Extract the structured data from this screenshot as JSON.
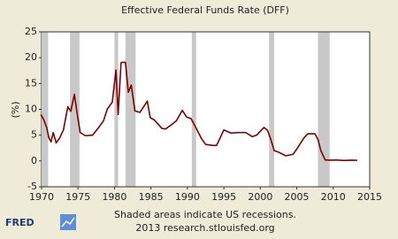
{
  "chart_data": {
    "type": "line",
    "title": "Effective Federal Funds Rate (DFF)",
    "y_label": "(%)",
    "notes": [
      "Shaded areas indicate US recessions.",
      "2013 research.stlouisfed.org"
    ],
    "logo": "FRED",
    "x": [
      1969.9,
      1970.3,
      1970.7,
      1971.0,
      1971.3,
      1971.6,
      1972.0,
      1972.5,
      1973.0,
      1973.6,
      1974.0,
      1974.5,
      1974.9,
      1975.3,
      1976.0,
      1977.0,
      1977.9,
      1978.5,
      1979.0,
      1979.7,
      1980.2,
      1980.5,
      1980.9,
      1981.0,
      1981.5,
      1981.9,
      1982.3,
      1982.8,
      1983.5,
      1984.5,
      1984.9,
      1985.5,
      1986.5,
      1987.0,
      1987.8,
      1988.5,
      1989.3,
      1989.9,
      1990.5,
      1991.0,
      1991.9,
      1992.5,
      1993.5,
      1994.0,
      1995.0,
      1996.0,
      1997.0,
      1998.0,
      1998.9,
      1999.5,
      2000.5,
      2001.0,
      2001.5,
      2001.9,
      2002.5,
      2003.5,
      2004.5,
      2005.0,
      2006.0,
      2006.5,
      2007.5,
      2007.9,
      2008.3,
      2008.9,
      2009.5,
      2010.5,
      2011.5,
      2012.5,
      2013.3
    ],
    "series": [
      {
        "name": "DFF",
        "color": "#800000",
        "values": [
          9.0,
          8.0,
          6.5,
          4.5,
          3.7,
          5.5,
          3.5,
          4.5,
          6.0,
          10.5,
          9.6,
          12.9,
          9.0,
          5.5,
          4.9,
          5.0,
          6.6,
          7.8,
          10.0,
          11.4,
          17.6,
          9.0,
          19.0,
          19.1,
          19.1,
          13.3,
          14.7,
          9.7,
          9.4,
          11.6,
          8.4,
          7.9,
          6.3,
          6.2,
          7.0,
          7.8,
          9.8,
          8.5,
          8.2,
          6.9,
          4.4,
          3.2,
          3.0,
          3.0,
          6.0,
          5.4,
          5.5,
          5.5,
          4.7,
          5.0,
          6.5,
          5.9,
          3.9,
          2.0,
          1.7,
          1.0,
          1.3,
          2.3,
          4.5,
          5.25,
          5.25,
          4.2,
          2.0,
          0.2,
          0.15,
          0.18,
          0.09,
          0.15,
          0.12
        ]
      }
    ],
    "recessions": [
      [
        1969.9,
        1970.9
      ],
      [
        1973.9,
        1975.2
      ],
      [
        1980.0,
        1980.5
      ],
      [
        1981.5,
        1982.9
      ],
      [
        1990.6,
        1991.2
      ],
      [
        2001.2,
        2001.9
      ],
      [
        2007.9,
        2009.5
      ]
    ],
    "recession_color": "#c8c8c8",
    "xlim": [
      1970,
      2015
    ],
    "xticks": [
      1970,
      1975,
      1980,
      1985,
      1990,
      1995,
      2000,
      2005,
      2010,
      2015
    ],
    "ylim": [
      -5,
      25
    ],
    "yticks": [
      -5,
      0,
      5,
      10,
      15,
      20,
      25
    ],
    "grid": false
  }
}
